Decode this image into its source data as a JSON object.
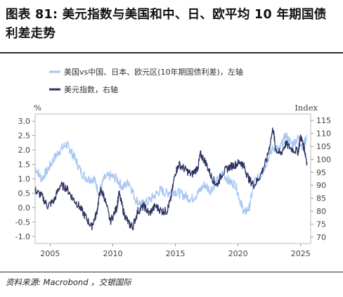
{
  "header": {
    "title": "图表 81: 美元指数与美国和中、日、欧平均 10 年期国债利差走势"
  },
  "footer": {
    "source": "资料来源: Macrobond ，交银国际"
  },
  "colors": {
    "spread": "#a7c6f2",
    "dxy": "#2d3363",
    "axis": "#bbbbbb"
  },
  "chart_data": {
    "type": "line",
    "left_axis_unit": "%",
    "right_axis_unit": "Index",
    "left_ylim": [
      -1.25,
      3.25
    ],
    "right_ylim": [
      67.5,
      117.5
    ],
    "left_ticks": [
      "3.0",
      "2.5",
      "2.0",
      "1.5",
      "1.0",
      "0.5",
      "0.0",
      "-0.5",
      "-1.0"
    ],
    "right_ticks": [
      "115",
      "110",
      "105",
      "100",
      "95",
      "90",
      "85",
      "80",
      "75",
      "70"
    ],
    "x_ticks": [
      "2005",
      "2010",
      "2015",
      "2020",
      "2025"
    ],
    "xlim": [
      2003.8,
      2025.8
    ],
    "legend_position": "top-left",
    "series": [
      {
        "name": "美国vs中国、日本、欧元区(10年期国债利差)，左轴",
        "axis": "left",
        "x": [
          2003.8,
          2004.3,
          2004.8,
          2005.3,
          2005.8,
          2006.3,
          2006.6,
          2007.0,
          2007.5,
          2008.0,
          2008.5,
          2008.9,
          2009.3,
          2009.8,
          2010.3,
          2010.8,
          2011.3,
          2011.8,
          2012.3,
          2012.8,
          2013.3,
          2013.8,
          2014.3,
          2014.8,
          2015.3,
          2015.8,
          2016.3,
          2016.8,
          2017.3,
          2017.8,
          2018.3,
          2018.8,
          2019.3,
          2019.8,
          2020.2,
          2020.5,
          2020.9,
          2021.3,
          2021.8,
          2022.3,
          2022.8,
          2023.3,
          2023.8,
          2024.3,
          2024.8,
          2025.2,
          2025.5
        ],
        "y": [
          1.4,
          1.0,
          1.3,
          1.7,
          2.0,
          2.2,
          2.0,
          1.7,
          1.2,
          1.0,
          1.0,
          0.5,
          1.0,
          1.1,
          1.0,
          0.7,
          0.9,
          0.3,
          0.1,
          0.2,
          0.4,
          0.6,
          0.5,
          0.6,
          0.5,
          0.4,
          0.3,
          0.5,
          0.8,
          0.6,
          0.9,
          1.2,
          0.9,
          0.8,
          0.2,
          -0.2,
          0.0,
          0.9,
          1.1,
          1.6,
          2.1,
          2.0,
          2.5,
          2.2,
          2.4,
          2.1,
          2.5
        ]
      },
      {
        "name": "美元指数，右轴",
        "axis": "right",
        "x": [
          2003.8,
          2004.3,
          2004.8,
          2005.3,
          2005.8,
          2006.3,
          2006.8,
          2007.3,
          2007.8,
          2008.3,
          2008.7,
          2009.0,
          2009.3,
          2009.8,
          2010.3,
          2010.5,
          2010.9,
          2011.3,
          2011.6,
          2012.0,
          2012.5,
          2012.9,
          2013.4,
          2013.9,
          2014.3,
          2014.6,
          2015.0,
          2015.3,
          2015.8,
          2016.3,
          2016.8,
          2017.0,
          2017.4,
          2017.9,
          2018.3,
          2018.8,
          2019.3,
          2019.8,
          2020.2,
          2020.5,
          2020.9,
          2021.3,
          2021.8,
          2022.3,
          2022.8,
          2023.0,
          2023.4,
          2023.8,
          2024.3,
          2024.8,
          2025.0,
          2025.3,
          2025.5
        ],
        "y": [
          88,
          86,
          82,
          84,
          90,
          89,
          85,
          82,
          78,
          74,
          79,
          88,
          86,
          76,
          81,
          87,
          79,
          75,
          74,
          80,
          82,
          79,
          82,
          80,
          80,
          84,
          95,
          98,
          96,
          94,
          97,
          102,
          99,
          93,
          90,
          95,
          97,
          98,
          99,
          97,
          92,
          90,
          94,
          100,
          112,
          104,
          102,
          106,
          104,
          103,
          109,
          104,
          99
        ]
      }
    ]
  }
}
